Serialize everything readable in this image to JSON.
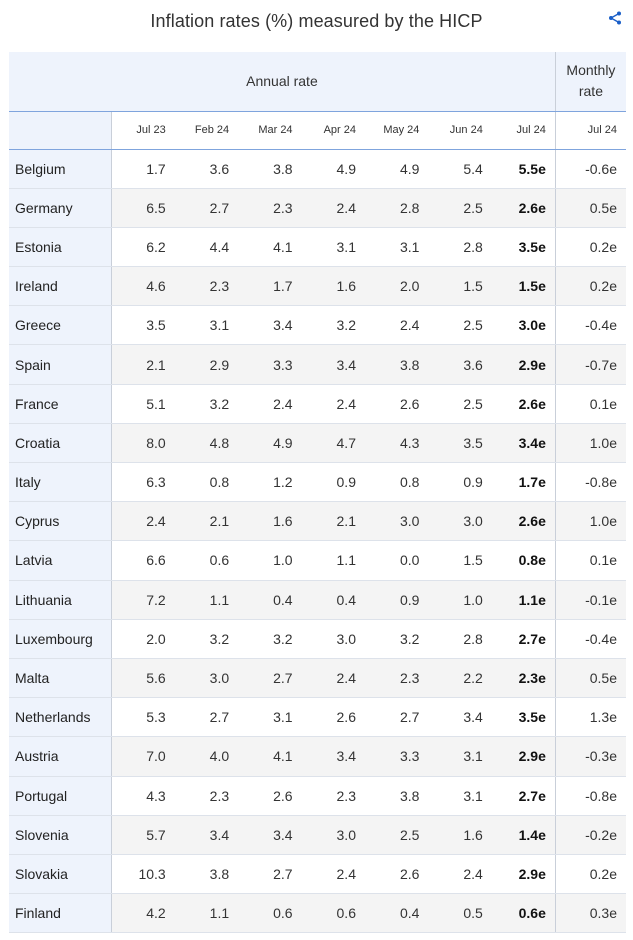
{
  "title": "Inflation rates (%) measured by the HICP",
  "share_icon": "share-icon",
  "header": {
    "annual_group": "Annual rate",
    "monthly_group": "Monthly rate",
    "periods": [
      "Jul 23",
      "Feb 24",
      "Mar 24",
      "Apr 24",
      "May 24",
      "Jun 24",
      "Jul 24",
      "Jul 24"
    ]
  },
  "rows": [
    {
      "country": "Belgium",
      "values": [
        "1.7",
        "3.6",
        "3.8",
        "4.9",
        "4.9",
        "5.4",
        "5.5e"
      ],
      "monthly": "-0.6e"
    },
    {
      "country": "Germany",
      "values": [
        "6.5",
        "2.7",
        "2.3",
        "2.4",
        "2.8",
        "2.5",
        "2.6e"
      ],
      "monthly": "0.5e"
    },
    {
      "country": "Estonia",
      "values": [
        "6.2",
        "4.4",
        "4.1",
        "3.1",
        "3.1",
        "2.8",
        "3.5e"
      ],
      "monthly": "0.2e"
    },
    {
      "country": "Ireland",
      "values": [
        "4.6",
        "2.3",
        "1.7",
        "1.6",
        "2.0",
        "1.5",
        "1.5e"
      ],
      "monthly": "0.2e"
    },
    {
      "country": "Greece",
      "values": [
        "3.5",
        "3.1",
        "3.4",
        "3.2",
        "2.4",
        "2.5",
        "3.0e"
      ],
      "monthly": "-0.4e"
    },
    {
      "country": "Spain",
      "values": [
        "2.1",
        "2.9",
        "3.3",
        "3.4",
        "3.8",
        "3.6",
        "2.9e"
      ],
      "monthly": "-0.7e"
    },
    {
      "country": "France",
      "values": [
        "5.1",
        "3.2",
        "2.4",
        "2.4",
        "2.6",
        "2.5",
        "2.6e"
      ],
      "monthly": "0.1e"
    },
    {
      "country": "Croatia",
      "values": [
        "8.0",
        "4.8",
        "4.9",
        "4.7",
        "4.3",
        "3.5",
        "3.4e"
      ],
      "monthly": "1.0e"
    },
    {
      "country": "Italy",
      "values": [
        "6.3",
        "0.8",
        "1.2",
        "0.9",
        "0.8",
        "0.9",
        "1.7e"
      ],
      "monthly": "-0.8e"
    },
    {
      "country": "Cyprus",
      "values": [
        "2.4",
        "2.1",
        "1.6",
        "2.1",
        "3.0",
        "3.0",
        "2.6e"
      ],
      "monthly": "1.0e"
    },
    {
      "country": "Latvia",
      "values": [
        "6.6",
        "0.6",
        "1.0",
        "1.1",
        "0.0",
        "1.5",
        "0.8e"
      ],
      "monthly": "0.1e"
    },
    {
      "country": "Lithuania",
      "values": [
        "7.2",
        "1.1",
        "0.4",
        "0.4",
        "0.9",
        "1.0",
        "1.1e"
      ],
      "monthly": "-0.1e"
    },
    {
      "country": "Luxembourg",
      "values": [
        "2.0",
        "3.2",
        "3.2",
        "3.0",
        "3.2",
        "2.8",
        "2.7e"
      ],
      "monthly": "-0.4e"
    },
    {
      "country": "Malta",
      "values": [
        "5.6",
        "3.0",
        "2.7",
        "2.4",
        "2.3",
        "2.2",
        "2.3e"
      ],
      "monthly": "0.5e"
    },
    {
      "country": "Netherlands",
      "values": [
        "5.3",
        "2.7",
        "3.1",
        "2.6",
        "2.7",
        "3.4",
        "3.5e"
      ],
      "monthly": "1.3e"
    },
    {
      "country": "Austria",
      "values": [
        "7.0",
        "4.0",
        "4.1",
        "3.4",
        "3.3",
        "3.1",
        "2.9e"
      ],
      "monthly": "-0.3e"
    },
    {
      "country": "Portugal",
      "values": [
        "4.3",
        "2.3",
        "2.6",
        "2.3",
        "3.8",
        "3.1",
        "2.7e"
      ],
      "monthly": "-0.8e"
    },
    {
      "country": "Slovenia",
      "values": [
        "5.7",
        "3.4",
        "3.4",
        "3.0",
        "2.5",
        "1.6",
        "1.4e"
      ],
      "monthly": "-0.2e"
    },
    {
      "country": "Slovakia",
      "values": [
        "10.3",
        "3.8",
        "2.7",
        "2.4",
        "2.6",
        "2.4",
        "2.9e"
      ],
      "monthly": "0.2e"
    },
    {
      "country": "Finland",
      "values": [
        "4.2",
        "1.1",
        "0.6",
        "0.6",
        "0.4",
        "0.5",
        "0.6e"
      ],
      "monthly": "0.3e"
    }
  ],
  "colors": {
    "header_bg": "#eef3fc",
    "stripe_bg": "#f4f4f4",
    "rule": "#7fa4dd",
    "accent": "#1a5fc8"
  }
}
